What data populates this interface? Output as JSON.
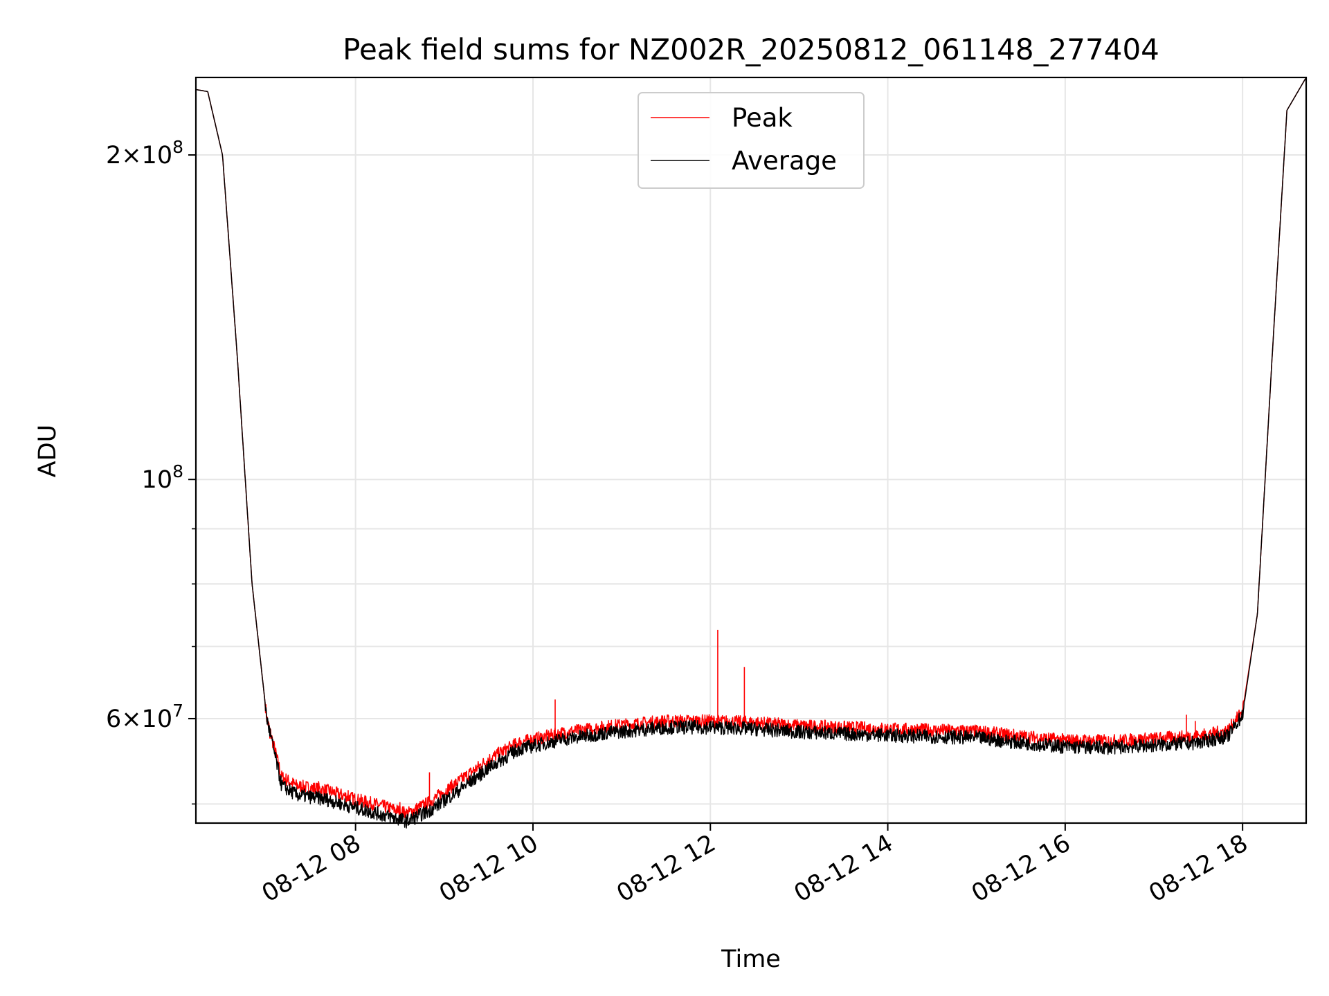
{
  "chart_data": {
    "type": "line",
    "title": "Peak field sums for NZ002R_20250812_061148_277404",
    "xlabel": "Time",
    "ylabel": "ADU",
    "x_axis": {
      "type": "time",
      "range": [
        "2025-08-12 06:12",
        "2025-08-12 18:43"
      ],
      "ticks": [
        "2025-08-12 08:00",
        "2025-08-12 10:00",
        "2025-08-12 12:00",
        "2025-08-12 14:00",
        "2025-08-12 16:00",
        "2025-08-12 18:00"
      ],
      "tick_labels": [
        "08-12 08",
        "08-12 10",
        "08-12 12",
        "08-12 14",
        "08-12 16",
        "08-12 18"
      ]
    },
    "y_axis": {
      "scale": "log",
      "range": [
        48000000,
        236000000
      ],
      "major_ticks": [
        60000000,
        100000000,
        200000000
      ],
      "tick_labels": [
        {
          "mantissa": "6",
          "exponent": "7"
        },
        {
          "mantissa": "",
          "exponent": "8"
        },
        {
          "mantissa": "2",
          "exponent": "8"
        }
      ],
      "minor_ticks": [
        50000000,
        70000000,
        80000000,
        90000000
      ]
    },
    "grid": true,
    "legend": {
      "placement": "upper center"
    },
    "series": [
      {
        "name": "Peak",
        "color": "#ff0000",
        "points": [
          [
            "2025-08-12 06:12",
            230000000
          ],
          [
            "2025-08-12 06:20",
            229000000
          ],
          [
            "2025-08-12 06:30",
            200000000
          ],
          [
            "2025-08-12 06:40",
            130000000
          ],
          [
            "2025-08-12 06:50",
            80000000
          ],
          [
            "2025-08-12 07:00",
            60000000
          ],
          [
            "2025-08-12 07:10",
            53000000
          ],
          [
            "2025-08-12 07:20",
            52000000
          ],
          [
            "2025-08-12 07:40",
            51500000
          ],
          [
            "2025-08-12 08:00",
            50500000
          ],
          [
            "2025-08-12 08:20",
            49700000
          ],
          [
            "2025-08-12 08:35",
            49000000
          ],
          [
            "2025-08-12 08:50",
            50200000
          ],
          [
            "2025-08-12 09:10",
            52500000
          ],
          [
            "2025-08-12 09:30",
            55000000
          ],
          [
            "2025-08-12 09:50",
            57000000
          ],
          [
            "2025-08-12 10:20",
            58200000
          ],
          [
            "2025-08-12 10:50",
            59000000
          ],
          [
            "2025-08-12 11:30",
            59700000
          ],
          [
            "2025-08-12 12:00",
            59700000
          ],
          [
            "2025-08-12 12:30",
            59500000
          ],
          [
            "2025-08-12 13:00",
            59100000
          ],
          [
            "2025-08-12 14:00",
            58700000
          ],
          [
            "2025-08-12 15:00",
            58400000
          ],
          [
            "2025-08-12 15:30",
            57800000
          ],
          [
            "2025-08-12 16:00",
            57300000
          ],
          [
            "2025-08-12 16:30",
            57200000
          ],
          [
            "2025-08-12 17:00",
            57500000
          ],
          [
            "2025-08-12 17:30",
            57800000
          ],
          [
            "2025-08-12 17:50",
            58500000
          ],
          [
            "2025-08-12 18:00",
            61000000
          ],
          [
            "2025-08-12 18:10",
            75000000
          ],
          [
            "2025-08-12 18:20",
            130000000
          ],
          [
            "2025-08-12 18:30",
            220000000
          ],
          [
            "2025-08-12 18:43",
            236000000
          ]
        ],
        "spikes": [
          [
            "2025-08-12 07:02",
            57500000
          ],
          [
            "2025-08-12 07:35",
            52500000
          ],
          [
            "2025-08-12 07:55",
            51500000
          ],
          [
            "2025-08-12 08:30",
            50200000
          ],
          [
            "2025-08-12 08:50",
            53500000
          ],
          [
            "2025-08-12 10:15",
            62500000
          ],
          [
            "2025-08-12 11:00",
            59800000
          ],
          [
            "2025-08-12 12:05",
            72500000
          ],
          [
            "2025-08-12 12:23",
            67000000
          ],
          [
            "2025-08-12 14:55",
            59000000
          ],
          [
            "2025-08-12 17:22",
            60500000
          ],
          [
            "2025-08-12 17:28",
            59700000
          ]
        ]
      },
      {
        "name": "Average",
        "color": "#000000",
        "points": [
          [
            "2025-08-12 06:12",
            230000000
          ],
          [
            "2025-08-12 06:20",
            229000000
          ],
          [
            "2025-08-12 06:30",
            200000000
          ],
          [
            "2025-08-12 06:40",
            130000000
          ],
          [
            "2025-08-12 06:50",
            80000000
          ],
          [
            "2025-08-12 07:00",
            60000000
          ],
          [
            "2025-08-12 07:10",
            52000000
          ],
          [
            "2025-08-12 07:20",
            51000000
          ],
          [
            "2025-08-12 07:40",
            50500000
          ],
          [
            "2025-08-12 08:00",
            49600000
          ],
          [
            "2025-08-12 08:20",
            48800000
          ],
          [
            "2025-08-12 08:35",
            48200000
          ],
          [
            "2025-08-12 08:50",
            49300000
          ],
          [
            "2025-08-12 09:10",
            51500000
          ],
          [
            "2025-08-12 09:30",
            54000000
          ],
          [
            "2025-08-12 09:50",
            56200000
          ],
          [
            "2025-08-12 10:20",
            57400000
          ],
          [
            "2025-08-12 10:50",
            58200000
          ],
          [
            "2025-08-12 11:30",
            58900000
          ],
          [
            "2025-08-12 12:00",
            58900000
          ],
          [
            "2025-08-12 12:30",
            58700000
          ],
          [
            "2025-08-12 13:00",
            58300000
          ],
          [
            "2025-08-12 14:00",
            57900000
          ],
          [
            "2025-08-12 15:00",
            57600000
          ],
          [
            "2025-08-12 15:30",
            57000000
          ],
          [
            "2025-08-12 16:00",
            56500000
          ],
          [
            "2025-08-12 16:30",
            56400000
          ],
          [
            "2025-08-12 17:00",
            56700000
          ],
          [
            "2025-08-12 17:30",
            57000000
          ],
          [
            "2025-08-12 17:50",
            57800000
          ],
          [
            "2025-08-12 18:00",
            60500000
          ],
          [
            "2025-08-12 18:10",
            75000000
          ],
          [
            "2025-08-12 18:20",
            130000000
          ],
          [
            "2025-08-12 18:30",
            220000000
          ],
          [
            "2025-08-12 18:43",
            236000000
          ]
        ]
      }
    ]
  }
}
